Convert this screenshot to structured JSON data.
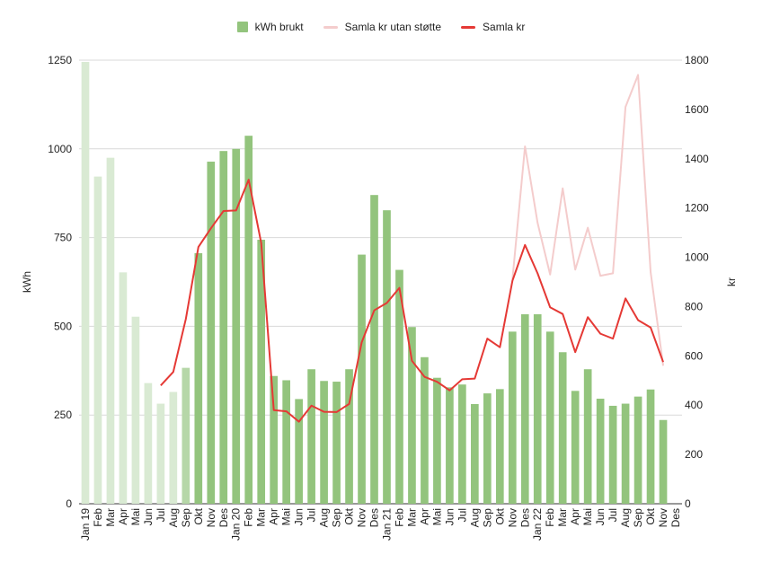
{
  "chart_data": {
    "type": "bar",
    "title": "",
    "legend": {
      "placement": "top-center",
      "items": [
        {
          "label": "kWh brukt",
          "kind": "box",
          "color": "#93c47d"
        },
        {
          "label": "Samla kr utan støtte",
          "kind": "line",
          "color": "#f4cccc"
        },
        {
          "label": "Samla kr",
          "kind": "line",
          "color": "#e53935"
        }
      ]
    },
    "colors": {
      "bar": "#93c47d",
      "bar_faded": "#d9ead3",
      "bar_mid": "#b6d7a8",
      "line_light": "#f4cccc",
      "line": "#e53935",
      "grid": "#d9d9d9",
      "axis": "#333333"
    },
    "y_left": {
      "label": "kWh",
      "min": 0,
      "max": 1250,
      "ticks": [
        0,
        250,
        500,
        750,
        1000,
        1250
      ]
    },
    "y_right": {
      "label": "kr",
      "min": 0,
      "max": 1800,
      "ticks": [
        0,
        200,
        400,
        600,
        800,
        1000,
        1200,
        1400,
        1600,
        1800
      ]
    },
    "categories": [
      "Jan 19",
      "Feb",
      "Mar",
      "Apr",
      "Mai",
      "Jun",
      "Jul",
      "Aug",
      "Sep",
      "Okt",
      "Nov",
      "Des",
      "Jan 20",
      "Feb",
      "Mar",
      "Apr",
      "Mai",
      "Jun",
      "Jul",
      "Aug",
      "Sep",
      "Okt",
      "Nov",
      "Des",
      "Jan 21",
      "Feb",
      "Mar",
      "Apr",
      "Mai",
      "Jun",
      "Jul",
      "Aug",
      "Sep",
      "Okt",
      "Nov",
      "Des",
      "Jan 22",
      "Feb",
      "Mar",
      "Apr",
      "Mai",
      "Jun",
      "Jul",
      "Aug",
      "Sep",
      "Okt",
      "Nov",
      "Des"
    ],
    "series": [
      {
        "name": "kWh brukt",
        "axis": "left",
        "type": "bar",
        "values": [
          1245,
          922,
          975,
          652,
          527,
          340,
          282,
          315,
          383,
          706,
          964,
          994,
          1000,
          1037,
          744,
          360,
          348,
          295,
          379,
          346,
          344,
          379,
          702,
          870,
          827,
          659,
          498,
          413,
          355,
          328,
          336,
          281,
          311,
          323,
          485,
          534,
          534,
          485,
          427,
          318,
          379,
          296,
          276,
          282,
          302,
          322,
          236,
          null
        ],
        "faded_until_index": 8
      },
      {
        "name": "Samla kr utan støtte",
        "axis": "right",
        "type": "line",
        "values": [
          null,
          null,
          null,
          null,
          null,
          null,
          null,
          null,
          null,
          null,
          null,
          null,
          null,
          null,
          null,
          null,
          null,
          null,
          null,
          null,
          null,
          null,
          null,
          null,
          null,
          null,
          null,
          null,
          null,
          null,
          null,
          null,
          null,
          null,
          910,
          1450,
          1140,
          930,
          1280,
          950,
          1120,
          925,
          935,
          1610,
          1740,
          940,
          560,
          null
        ]
      },
      {
        "name": "Samla kr",
        "axis": "right",
        "type": "line",
        "values": [
          null,
          null,
          null,
          null,
          null,
          null,
          480,
          535,
          750,
          1042,
          1118,
          1188,
          1190,
          1315,
          1058,
          380,
          375,
          333,
          398,
          373,
          372,
          405,
          655,
          785,
          815,
          876,
          580,
          515,
          495,
          460,
          505,
          508,
          670,
          635,
          905,
          1050,
          935,
          797,
          770,
          615,
          757,
          690,
          670,
          833,
          745,
          715,
          575,
          null
        ]
      }
    ]
  }
}
